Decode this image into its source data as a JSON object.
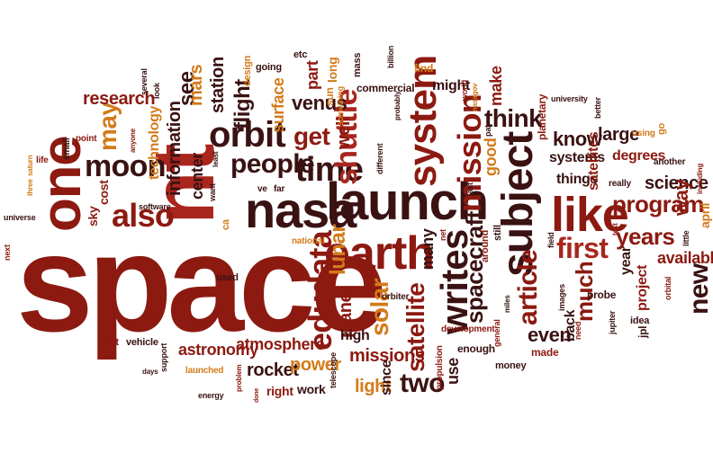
{
  "palette": {
    "deep": "#8c1a11",
    "red": "#a8261d",
    "dark": "#3a1212",
    "orange": "#d37b1a",
    "amber": "#c9892a",
    "brown": "#6b1f14"
  },
  "words": [
    {
      "text": "space",
      "color": "#8c1a11"
    },
    {
      "text": "nt",
      "color": "#a8261d"
    },
    {
      "text": "one",
      "color": "#8c1a11"
    },
    {
      "text": "nasa",
      "color": "#3a1212"
    },
    {
      "text": "launch",
      "color": "#3a1212"
    },
    {
      "text": "earth",
      "color": "#8c1a11"
    },
    {
      "text": "subject",
      "color": "#3a1212"
    },
    {
      "text": "like",
      "color": "#8c1a11"
    },
    {
      "text": "writes",
      "color": "#3a1212"
    },
    {
      "text": "system",
      "color": "#8c1a11"
    },
    {
      "text": "edudata",
      "color": "#8c1a11"
    },
    {
      "text": "orbit",
      "color": "#3a1212"
    },
    {
      "text": "time",
      "color": "#3a1212"
    },
    {
      "text": "mission",
      "color": "#8c1a11"
    },
    {
      "text": "also",
      "color": "#8c1a11"
    },
    {
      "text": "moon",
      "color": "#3a1212"
    },
    {
      "text": "shuttle",
      "color": "#a8261d"
    },
    {
      "text": "people",
      "color": "#3a1212"
    },
    {
      "text": "first",
      "color": "#a8261d"
    },
    {
      "text": "article",
      "color": "#8c1a11"
    },
    {
      "text": "spacecraft",
      "color": "#3a1212"
    },
    {
      "text": "program",
      "color": "#8c1a11"
    },
    {
      "text": "satellite",
      "color": "#8c1a11"
    },
    {
      "text": "two",
      "color": "#3a1212"
    },
    {
      "text": "new",
      "color": "#3a1212"
    },
    {
      "text": "much",
      "color": "#8c1a11"
    },
    {
      "text": "get",
      "color": "#8c1a11"
    },
    {
      "text": "think",
      "color": "#3a1212"
    },
    {
      "text": "years",
      "color": "#8c1a11"
    },
    {
      "text": "may",
      "color": "#d37b1a"
    },
    {
      "text": "solar",
      "color": "#d37b1a"
    },
    {
      "text": "lunar",
      "color": "#d37b1a"
    },
    {
      "text": "flight",
      "color": "#3a1212"
    },
    {
      "text": "research",
      "color": "#8c1a11"
    },
    {
      "text": "see",
      "color": "#3a1212"
    },
    {
      "text": "science",
      "color": "#3a1212"
    },
    {
      "text": "way",
      "color": "#8c1a11"
    },
    {
      "text": "know",
      "color": "#3a1212"
    },
    {
      "text": "large",
      "color": "#3a1212"
    },
    {
      "text": "venus",
      "color": "#3a1212"
    },
    {
      "text": "available",
      "color": "#8c1a11"
    },
    {
      "text": "even",
      "color": "#3a1212"
    },
    {
      "text": "many",
      "color": "#3a1212"
    },
    {
      "text": "planet",
      "color": "#8c1a11"
    },
    {
      "text": "light",
      "color": "#d37b1a"
    },
    {
      "text": "rocket",
      "color": "#3a1212"
    },
    {
      "text": "missions",
      "color": "#8c1a11"
    },
    {
      "text": "power",
      "color": "#d37b1a"
    },
    {
      "text": "atmosphere",
      "color": "#8c1a11"
    },
    {
      "text": "astronomy",
      "color": "#8c1a11"
    },
    {
      "text": "station",
      "color": "#3a1212"
    },
    {
      "text": "information",
      "color": "#3a1212"
    },
    {
      "text": "mars",
      "color": "#d37b1a"
    },
    {
      "text": "surface",
      "color": "#d37b1a"
    },
    {
      "text": "use",
      "color": "#3a1212"
    },
    {
      "text": "since",
      "color": "#3a1212"
    },
    {
      "text": "good",
      "color": "#d37b1a"
    },
    {
      "text": "high",
      "color": "#3a1212"
    },
    {
      "text": "systems",
      "color": "#3a1212"
    },
    {
      "text": "things",
      "color": "#3a1212"
    },
    {
      "text": "degrees",
      "color": "#8c1a11"
    },
    {
      "text": "satellites",
      "color": "#8c1a11"
    },
    {
      "text": "project",
      "color": "#8c1a11"
    },
    {
      "text": "year",
      "color": "#3a1212"
    },
    {
      "text": "back",
      "color": "#3a1212"
    },
    {
      "text": "technology",
      "color": "#d37b1a"
    },
    {
      "text": "center",
      "color": "#3a1212"
    },
    {
      "text": "part",
      "color": "#8c1a11"
    },
    {
      "text": "well",
      "color": "#8c1a11"
    },
    {
      "text": "make",
      "color": "#8c1a11"
    },
    {
      "text": "might",
      "color": "#3a1212"
    },
    {
      "text": "commercial",
      "color": "#3a1212"
    },
    {
      "text": "work",
      "color": "#3a1212"
    },
    {
      "text": "right",
      "color": "#8c1a11"
    },
    {
      "text": "enough",
      "color": "#3a1212"
    },
    {
      "text": "money",
      "color": "#3a1212"
    },
    {
      "text": "made",
      "color": "#8c1a11"
    },
    {
      "text": "cost",
      "color": "#8c1a11"
    },
    {
      "text": "sky",
      "color": "#8c1a11"
    },
    {
      "text": "planetary",
      "color": "#8c1a11"
    },
    {
      "text": "long",
      "color": "#d37b1a"
    },
    {
      "text": "sun",
      "color": "#d37b1a"
    },
    {
      "text": "design",
      "color": "#d37b1a"
    },
    {
      "text": "going",
      "color": "#3a1212"
    },
    {
      "text": "etc",
      "color": "#3a1212"
    },
    {
      "text": "mass",
      "color": "#3a1212"
    },
    {
      "text": "find",
      "color": "#d37b1a"
    },
    {
      "text": "billion",
      "color": "#3a1212"
    },
    {
      "text": "april",
      "color": "#d37b1a"
    },
    {
      "text": "jpl",
      "color": "#3a1212"
    },
    {
      "text": "probe",
      "color": "#3a1212"
    },
    {
      "text": "idea",
      "color": "#3a1212"
    },
    {
      "text": "vehicle",
      "color": "#3a1212"
    },
    {
      "text": "hst",
      "color": "#8c1a11"
    },
    {
      "text": "used",
      "color": "#3a1212"
    },
    {
      "text": "software",
      "color": "#3a1212"
    },
    {
      "text": "small",
      "color": "#3a1212"
    },
    {
      "text": "point",
      "color": "#8c1a11"
    },
    {
      "text": "life",
      "color": "#8c1a11"
    },
    {
      "text": "several",
      "color": "#3a1212"
    },
    {
      "text": "look",
      "color": "#3a1212"
    },
    {
      "text": "universe",
      "color": "#3a1212"
    },
    {
      "text": "next",
      "color": "#8c1a11"
    },
    {
      "text": "three",
      "color": "#d37b1a"
    },
    {
      "text": "saturn",
      "color": "#d37b1a"
    },
    {
      "text": "anyone",
      "color": "#8c1a11"
    },
    {
      "text": "want",
      "color": "#3a1212"
    },
    {
      "text": "ca",
      "color": "#d37b1a"
    },
    {
      "text": "least",
      "color": "#3a1212"
    },
    {
      "text": "ve",
      "color": "#3a1212"
    },
    {
      "text": "far",
      "color": "#3a1212"
    },
    {
      "text": "national",
      "color": "#d37b1a"
    },
    {
      "text": "orbiter",
      "color": "#3a1212"
    },
    {
      "text": "development",
      "color": "#8c1a11"
    },
    {
      "text": "general",
      "color": "#8c1a11"
    },
    {
      "text": "miles",
      "color": "#3a1212"
    },
    {
      "text": "around",
      "color": "#8c1a11"
    },
    {
      "text": "still",
      "color": "#3a1212"
    },
    {
      "text": "field",
      "color": "#3a1212"
    },
    {
      "text": "last",
      "color": "#3a1212"
    },
    {
      "text": "test",
      "color": "#8c1a11"
    },
    {
      "text": "little",
      "color": "#3a1212"
    },
    {
      "text": "orbital",
      "color": "#8c1a11"
    },
    {
      "text": "including",
      "color": "#8c1a11"
    },
    {
      "text": "another",
      "color": "#3a1212"
    },
    {
      "text": "really",
      "color": "#3a1212"
    },
    {
      "text": "using",
      "color": "#d37b1a"
    },
    {
      "text": "go",
      "color": "#d37b1a"
    },
    {
      "text": "better",
      "color": "#3a1212"
    },
    {
      "text": "university",
      "color": "#3a1212"
    },
    {
      "text": "pat",
      "color": "#3a1212"
    },
    {
      "text": "different",
      "color": "#3a1212"
    },
    {
      "text": "probably",
      "color": "#3a1212"
    },
    {
      "text": "something",
      "color": "#d37b1a"
    },
    {
      "text": "world",
      "color": "#8c1a11"
    },
    {
      "text": "nasagov",
      "color": "#d37b1a"
    },
    {
      "text": "net",
      "color": "#8c1a11"
    },
    {
      "text": "images",
      "color": "#3a1212"
    },
    {
      "text": "need",
      "color": "#8c1a11"
    },
    {
      "text": "jupiter",
      "color": "#3a1212"
    },
    {
      "text": "propulsion",
      "color": "#8c1a11"
    },
    {
      "text": "telescope",
      "color": "#3a1212"
    },
    {
      "text": "support",
      "color": "#3a1212"
    },
    {
      "text": "days",
      "color": "#3a1212"
    },
    {
      "text": "launched",
      "color": "#d37b1a"
    },
    {
      "text": "problem",
      "color": "#8c1a11"
    },
    {
      "text": "energy",
      "color": "#3a1212"
    },
    {
      "text": "done",
      "color": "#8c1a11"
    }
  ]
}
